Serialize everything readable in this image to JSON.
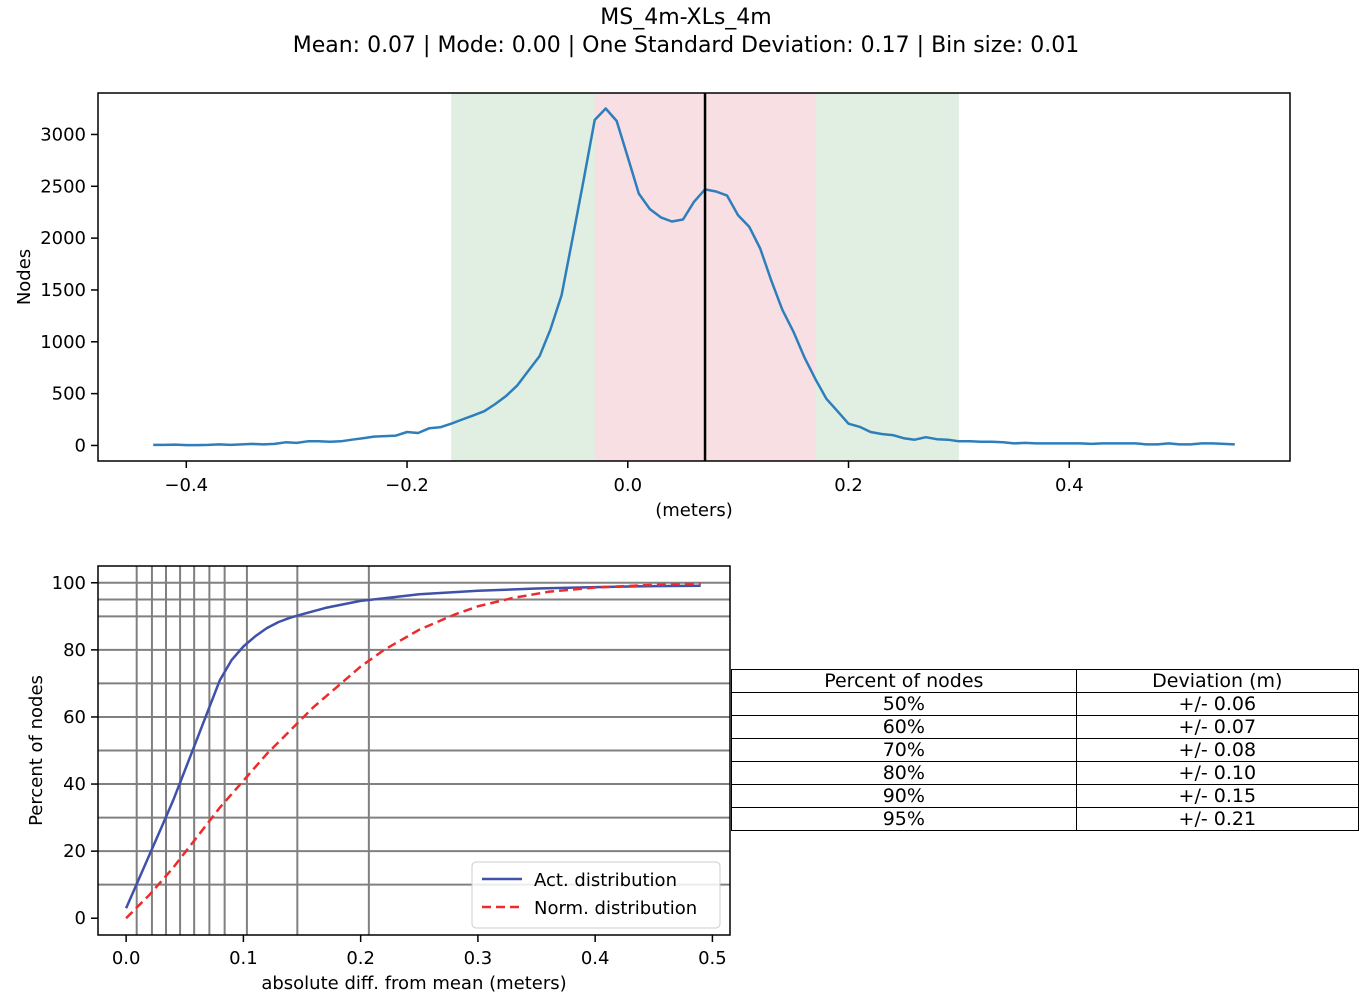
{
  "title": "MS_4m-XLs_4m",
  "subtitle": "Mean: 0.07 | Mode: 0.00 | One Standard Deviation: 0.17 | Bin size: 0.01",
  "colors": {
    "histogram_line": "#2f7ebc",
    "mean_line": "#000000",
    "one_sd_band": "#f7dfe3",
    "two_sd_band": "#e0efe2",
    "actual_line": "#3f51a8",
    "normal_line": "#ee2b2b",
    "grid": "#808080"
  },
  "chart_data": [
    {
      "type": "line",
      "title": "",
      "xlabel": "(meters)",
      "ylabel": "Nodes",
      "xlim": [
        -0.48,
        0.6
      ],
      "ylim": [
        -150,
        3400
      ],
      "xticks": [
        -0.4,
        -0.2,
        0.0,
        0.2,
        0.4
      ],
      "xtick_labels": [
        "−0.4",
        "−0.2",
        "0.0",
        "0.2",
        "0.4"
      ],
      "yticks": [
        0,
        500,
        1000,
        1500,
        2000,
        2500,
        3000
      ],
      "mean": 0.07,
      "one_sd_band": [
        -0.03,
        0.17
      ],
      "two_sd_band": [
        -0.16,
        0.3
      ],
      "series": [
        {
          "x": [
            -0.43,
            -0.42,
            -0.41,
            -0.4,
            -0.39,
            -0.38,
            -0.37,
            -0.36,
            -0.35,
            -0.34,
            -0.33,
            -0.32,
            -0.31,
            -0.3,
            -0.29,
            -0.28,
            -0.27,
            -0.26,
            -0.25,
            -0.24,
            -0.23,
            -0.22,
            -0.21,
            -0.2,
            -0.19,
            -0.18,
            -0.17,
            -0.16,
            -0.15,
            -0.14,
            -0.13,
            -0.12,
            -0.11,
            -0.1,
            -0.09,
            -0.08,
            -0.07,
            -0.06,
            -0.05,
            -0.04,
            -0.03,
            -0.02,
            -0.01,
            0.0,
            0.01,
            0.02,
            0.03,
            0.04,
            0.05,
            0.06,
            0.07,
            0.08,
            0.09,
            0.1,
            0.11,
            0.12,
            0.13,
            0.14,
            0.15,
            0.16,
            0.17,
            0.18,
            0.19,
            0.2,
            0.21,
            0.22,
            0.23,
            0.24,
            0.25,
            0.26,
            0.27,
            0.28,
            0.29,
            0.3,
            0.31,
            0.32,
            0.33,
            0.34,
            0.35,
            0.36,
            0.37,
            0.38,
            0.39,
            0.4,
            0.41,
            0.42,
            0.43,
            0.44,
            0.45,
            0.46,
            0.47,
            0.48,
            0.49,
            0.5,
            0.51,
            0.52,
            0.53,
            0.54,
            0.55
          ],
          "y": [
            5,
            5,
            8,
            3,
            3,
            5,
            10,
            5,
            10,
            15,
            10,
            15,
            30,
            25,
            40,
            40,
            35,
            40,
            55,
            70,
            85,
            90,
            95,
            130,
            120,
            165,
            175,
            210,
            250,
            290,
            330,
            400,
            480,
            580,
            720,
            860,
            1120,
            1450,
            2000,
            2560,
            3140,
            3250,
            3130,
            2780,
            2430,
            2280,
            2200,
            2160,
            2180,
            2350,
            2470,
            2450,
            2410,
            2220,
            2110,
            1900,
            1590,
            1310,
            1100,
            850,
            640,
            450,
            330,
            210,
            180,
            130,
            110,
            100,
            70,
            55,
            80,
            60,
            55,
            40,
            40,
            35,
            35,
            30,
            20,
            25,
            20,
            20,
            20,
            20,
            20,
            15,
            20,
            20,
            20,
            20,
            10,
            10,
            20,
            10,
            10,
            20,
            20,
            15,
            10
          ],
          "name": ""
        }
      ]
    },
    {
      "type": "line",
      "title": "",
      "xlabel": "absolute diff. from mean (meters)",
      "ylabel": "Percent of nodes",
      "xlim": [
        -0.024,
        0.515
      ],
      "ylim": [
        -5,
        105
      ],
      "xticks": [
        0.0,
        0.1,
        0.2,
        0.3,
        0.4,
        0.5
      ],
      "xtick_labels": [
        "0.0",
        "0.1",
        "0.2",
        "0.3",
        "0.4",
        "0.5"
      ],
      "yticks": [
        0,
        20,
        40,
        60,
        80,
        100
      ],
      "grid_x": [
        0.009,
        0.022,
        0.034,
        0.046,
        0.058,
        0.071,
        0.084,
        0.103,
        0.146,
        0.207
      ],
      "grid_y": [
        10,
        20,
        30,
        40,
        50,
        60,
        70,
        80,
        90,
        95,
        100
      ],
      "series": [
        {
          "name": "Act. distribution",
          "x": [
            0.0,
            0.01,
            0.02,
            0.03,
            0.04,
            0.05,
            0.06,
            0.07,
            0.08,
            0.09,
            0.1,
            0.11,
            0.12,
            0.13,
            0.14,
            0.15,
            0.17,
            0.2,
            0.25,
            0.3,
            0.35,
            0.4,
            0.45,
            0.49
          ],
          "y": [
            3,
            11,
            19,
            27,
            35,
            44,
            53,
            62,
            71,
            77,
            81,
            84,
            86.5,
            88.3,
            89.6,
            90.6,
            92.5,
            94.6,
            96.6,
            97.6,
            98.3,
            98.7,
            99.0,
            99.1
          ]
        },
        {
          "name": "Norm. distribution",
          "x": [
            0.0,
            0.02,
            0.04,
            0.06,
            0.08,
            0.1,
            0.12,
            0.14,
            0.16,
            0.18,
            0.2,
            0.22,
            0.25,
            0.28,
            0.3,
            0.33,
            0.36,
            0.4,
            0.45,
            0.49
          ],
          "y": [
            0,
            7,
            15,
            24,
            33,
            41,
            49,
            56,
            63,
            69,
            75,
            80,
            86,
            90.5,
            93,
            95.5,
            97.3,
            98.6,
            99.4,
            99.7
          ]
        }
      ]
    }
  ],
  "table": {
    "headers": [
      "Percent of nodes",
      "Deviation (m)"
    ],
    "rows": [
      [
        "50%",
        "+/- 0.06"
      ],
      [
        "60%",
        "+/- 0.07"
      ],
      [
        "70%",
        "+/- 0.08"
      ],
      [
        "80%",
        "+/- 0.10"
      ],
      [
        "90%",
        "+/- 0.15"
      ],
      [
        "95%",
        "+/- 0.21"
      ]
    ]
  }
}
